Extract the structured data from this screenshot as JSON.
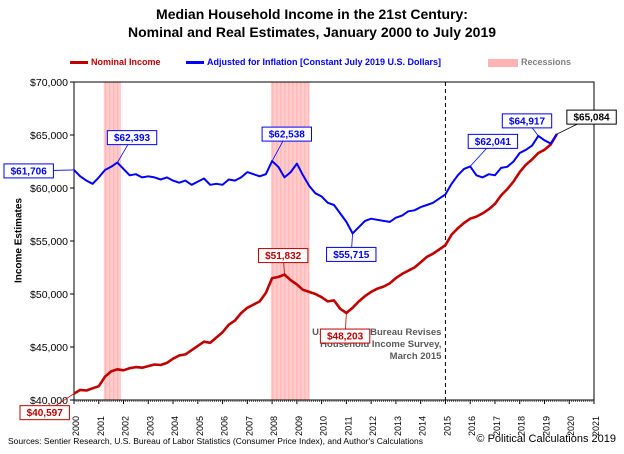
{
  "chart_data": {
    "type": "line",
    "title_line1": "Median Household Income in the 21st Century:",
    "title_line2": "Nominal and Real Estimates, January 2000 to July 2019",
    "ylabel": "Income Estimates",
    "ylim": [
      40000,
      70000
    ],
    "xlim": [
      2000,
      2021
    ],
    "y_ticks": [
      "$40,000",
      "$45,000",
      "$50,000",
      "$55,000",
      "$60,000",
      "$65,000",
      "$70,000"
    ],
    "x_ticks": [
      "2000",
      "2001",
      "2002",
      "2003",
      "2004",
      "2005",
      "2006",
      "2007",
      "2008",
      "2009",
      "2010",
      "2011",
      "2012",
      "2013",
      "2014",
      "2015",
      "2016",
      "2017",
      "2018",
      "2019",
      "2020",
      "2021"
    ],
    "legend": [
      {
        "label": "Nominal Income",
        "color": "#c00000"
      },
      {
        "label": "Adjusted for Inflation [Constant July 2019 U.S. Dollars]",
        "color": "#0000ff"
      },
      {
        "label": "Recessions",
        "color": "#ffb3b3"
      }
    ],
    "recessions": [
      [
        2001.2,
        2001.9
      ],
      [
        2007.95,
        2009.5
      ]
    ],
    "revision_marker": {
      "x": 2015.0,
      "text": [
        "U.S. Census Bureau Revises",
        "Household Income Survey,",
        "March 2015"
      ]
    },
    "series": [
      {
        "name": "Nominal Income",
        "color": "#c00000",
        "points": [
          [
            2000.0,
            40597
          ],
          [
            2000.25,
            40950
          ],
          [
            2000.5,
            40900
          ],
          [
            2000.75,
            41100
          ],
          [
            2001.0,
            41300
          ],
          [
            2001.25,
            42200
          ],
          [
            2001.5,
            42700
          ],
          [
            2001.75,
            42900
          ],
          [
            2002.0,
            42800
          ],
          [
            2002.25,
            43000
          ],
          [
            2002.5,
            43100
          ],
          [
            2002.75,
            43050
          ],
          [
            2003.0,
            43200
          ],
          [
            2003.25,
            43350
          ],
          [
            2003.5,
            43300
          ],
          [
            2003.75,
            43500
          ],
          [
            2004.0,
            43900
          ],
          [
            2004.25,
            44200
          ],
          [
            2004.5,
            44300
          ],
          [
            2004.75,
            44700
          ],
          [
            2005.0,
            45100
          ],
          [
            2005.25,
            45500
          ],
          [
            2005.5,
            45400
          ],
          [
            2005.75,
            45900
          ],
          [
            2006.0,
            46400
          ],
          [
            2006.25,
            47100
          ],
          [
            2006.5,
            47500
          ],
          [
            2006.75,
            48200
          ],
          [
            2007.0,
            48700
          ],
          [
            2007.25,
            49000
          ],
          [
            2007.5,
            49300
          ],
          [
            2007.75,
            50100
          ],
          [
            2008.0,
            51500
          ],
          [
            2008.25,
            51600
          ],
          [
            2008.5,
            51832
          ],
          [
            2008.75,
            51300
          ],
          [
            2009.0,
            50900
          ],
          [
            2009.25,
            50400
          ],
          [
            2009.5,
            50200
          ],
          [
            2009.75,
            50000
          ],
          [
            2010.0,
            49700
          ],
          [
            2010.25,
            49300
          ],
          [
            2010.5,
            49400
          ],
          [
            2010.75,
            48600
          ],
          [
            2011.0,
            48203
          ],
          [
            2011.25,
            48700
          ],
          [
            2011.5,
            49300
          ],
          [
            2011.75,
            49800
          ],
          [
            2012.0,
            50200
          ],
          [
            2012.25,
            50500
          ],
          [
            2012.5,
            50700
          ],
          [
            2012.75,
            51000
          ],
          [
            2013.0,
            51500
          ],
          [
            2013.25,
            51900
          ],
          [
            2013.5,
            52200
          ],
          [
            2013.75,
            52500
          ],
          [
            2014.0,
            53000
          ],
          [
            2014.25,
            53500
          ],
          [
            2014.5,
            53800
          ],
          [
            2014.75,
            54200
          ],
          [
            2015.0,
            54600
          ],
          [
            2015.25,
            55600
          ],
          [
            2015.5,
            56200
          ],
          [
            2015.75,
            56700
          ],
          [
            2016.0,
            57100
          ],
          [
            2016.25,
            57300
          ],
          [
            2016.5,
            57600
          ],
          [
            2016.75,
            58000
          ],
          [
            2017.0,
            58500
          ],
          [
            2017.25,
            59300
          ],
          [
            2017.5,
            59900
          ],
          [
            2017.75,
            60600
          ],
          [
            2018.0,
            61500
          ],
          [
            2018.25,
            62200
          ],
          [
            2018.5,
            62700
          ],
          [
            2018.75,
            63300
          ],
          [
            2019.0,
            63600
          ],
          [
            2019.25,
            64100
          ],
          [
            2019.5,
            65084
          ]
        ]
      },
      {
        "name": "Adjusted for Inflation [Constant July 2019 U.S. Dollars]",
        "color": "#0000ff",
        "points": [
          [
            2000.0,
            61706
          ],
          [
            2000.25,
            61100
          ],
          [
            2000.5,
            60700
          ],
          [
            2000.75,
            60400
          ],
          [
            2001.0,
            61000
          ],
          [
            2001.25,
            61700
          ],
          [
            2001.5,
            62000
          ],
          [
            2001.75,
            62393
          ],
          [
            2002.0,
            61800
          ],
          [
            2002.25,
            61200
          ],
          [
            2002.5,
            61300
          ],
          [
            2002.75,
            61000
          ],
          [
            2003.0,
            61100
          ],
          [
            2003.25,
            61000
          ],
          [
            2003.5,
            60800
          ],
          [
            2003.75,
            61000
          ],
          [
            2004.0,
            60700
          ],
          [
            2004.25,
            60500
          ],
          [
            2004.5,
            60700
          ],
          [
            2004.75,
            60300
          ],
          [
            2005.0,
            60600
          ],
          [
            2005.25,
            60900
          ],
          [
            2005.5,
            60300
          ],
          [
            2005.75,
            60400
          ],
          [
            2006.0,
            60300
          ],
          [
            2006.25,
            60800
          ],
          [
            2006.5,
            60700
          ],
          [
            2006.75,
            61000
          ],
          [
            2007.0,
            61500
          ],
          [
            2007.25,
            61300
          ],
          [
            2007.5,
            61100
          ],
          [
            2007.75,
            61300
          ],
          [
            2008.0,
            62538
          ],
          [
            2008.25,
            62000
          ],
          [
            2008.5,
            61000
          ],
          [
            2008.75,
            61500
          ],
          [
            2009.0,
            62300
          ],
          [
            2009.25,
            61200
          ],
          [
            2009.5,
            60200
          ],
          [
            2009.75,
            59500
          ],
          [
            2010.0,
            59200
          ],
          [
            2010.25,
            58600
          ],
          [
            2010.5,
            58400
          ],
          [
            2010.75,
            57600
          ],
          [
            2011.0,
            56800
          ],
          [
            2011.25,
            55715
          ],
          [
            2011.5,
            56300
          ],
          [
            2011.75,
            56900
          ],
          [
            2012.0,
            57100
          ],
          [
            2012.25,
            57000
          ],
          [
            2012.5,
            56900
          ],
          [
            2012.75,
            56800
          ],
          [
            2013.0,
            57200
          ],
          [
            2013.25,
            57400
          ],
          [
            2013.5,
            57800
          ],
          [
            2013.75,
            57900
          ],
          [
            2014.0,
            58200
          ],
          [
            2014.25,
            58400
          ],
          [
            2014.5,
            58600
          ],
          [
            2014.75,
            59000
          ],
          [
            2015.0,
            59400
          ],
          [
            2015.25,
            60400
          ],
          [
            2015.5,
            61200
          ],
          [
            2015.75,
            61800
          ],
          [
            2016.0,
            62041
          ],
          [
            2016.25,
            61200
          ],
          [
            2016.5,
            61000
          ],
          [
            2016.75,
            61300
          ],
          [
            2017.0,
            61200
          ],
          [
            2017.25,
            61900
          ],
          [
            2017.5,
            62000
          ],
          [
            2017.75,
            62500
          ],
          [
            2018.0,
            63300
          ],
          [
            2018.25,
            63600
          ],
          [
            2018.5,
            64000
          ],
          [
            2018.75,
            64917
          ],
          [
            2019.0,
            64500
          ],
          [
            2019.25,
            64200
          ],
          [
            2019.5,
            65084
          ]
        ]
      }
    ],
    "annotations": [
      {
        "text": "$61,706",
        "x": 2000.0,
        "y": 61706,
        "color": "#0000ff",
        "series": "real"
      },
      {
        "text": "$62,393",
        "x": 2001.75,
        "y": 62393,
        "color": "#0000ff",
        "series": "real"
      },
      {
        "text": "$62,538",
        "x": 2008.0,
        "y": 62538,
        "color": "#0000ff",
        "series": "real"
      },
      {
        "text": "$55,715",
        "x": 2011.25,
        "y": 55715,
        "color": "#0000ff",
        "series": "real"
      },
      {
        "text": "$62,041",
        "x": 2016.0,
        "y": 62041,
        "color": "#0000ff",
        "series": "real"
      },
      {
        "text": "$64,917",
        "x": 2018.75,
        "y": 64917,
        "color": "#0000ff",
        "series": "real"
      },
      {
        "text": "$65,084",
        "x": 2019.5,
        "y": 65084,
        "color": "#000000",
        "series": "both"
      },
      {
        "text": "$51,832",
        "x": 2008.5,
        "y": 51832,
        "color": "#c00000",
        "series": "nominal"
      },
      {
        "text": "$48,203",
        "x": 2011.0,
        "y": 48203,
        "color": "#c00000",
        "series": "nominal"
      },
      {
        "text": "$40,597",
        "x": 2000.0,
        "y": 40597,
        "color": "#c00000",
        "series": "nominal"
      }
    ],
    "grid": false
  },
  "footer": {
    "sources": "Sources: Sentier Research, U.S. Bureau of Labor Statistics (Consumer  Price Index), and Author's Calculations",
    "copyright": "© Political Calculations 2019"
  }
}
